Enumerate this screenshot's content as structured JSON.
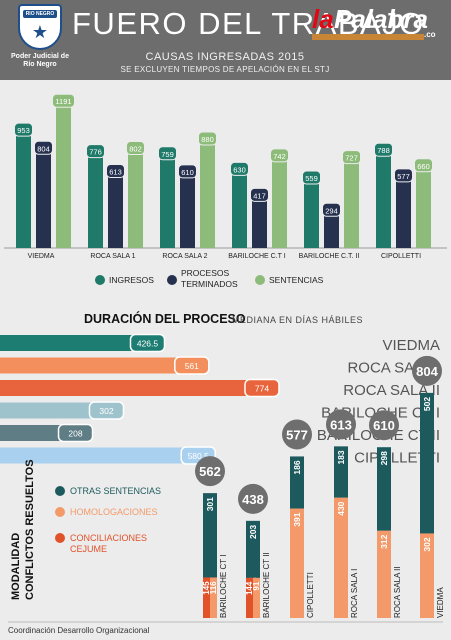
{
  "header": {
    "title": "FUERO DEL TRABAJO",
    "subtitle": "CAUSAS INGRESADAS 2015",
    "note": "SE EXCLUYEN TIEMPOS DE APELACIÓN EN EL STJ",
    "org_label": "Poder Judicial de Río Negro",
    "seal_text": "RIO NEGRO",
    "logo_text_a": "la",
    "logo_text_b": "Palabra",
    "logo_suffix": ".co"
  },
  "colors": {
    "ingresos": "#1f7a6a",
    "terminados": "#26304f",
    "sentencias": "#8dbb7a",
    "duration_dark": "#1e7d72",
    "duration_orange": "#f28f5c",
    "duration_red": "#e8643c",
    "duration_lightblue": "#9fc3cc",
    "duration_slate": "#5e7d85",
    "duration_skyblue": "#a9d0ee",
    "otras": "#1d5a5e",
    "homologaciones": "#f49a6a",
    "conciliaciones": "#e1522b"
  },
  "chart_data": [
    {
      "type": "bar",
      "categories": [
        "VIEDMA",
        "ROCA SALA 1",
        "ROCA SALA 2",
        "BARILOCHE C.T I",
        "BARILOCHE C.T. II",
        "CIPOLLETTI"
      ],
      "series": [
        {
          "name": "INGRESOS",
          "values": [
            953,
            776,
            759,
            630,
            559,
            788
          ]
        },
        {
          "name": "PROCESOS TERMINADOS",
          "values": [
            804,
            613,
            610,
            417,
            294,
            577
          ]
        },
        {
          "name": "SENTENCIAS",
          "values": [
            1191,
            802,
            880,
            742,
            727,
            660
          ]
        }
      ],
      "legend": [
        "INGRESOS",
        "PROCESOS TERMINADOS",
        "SENTENCIAS"
      ],
      "ylim": [
        0,
        1300
      ],
      "legend_position": "bottom"
    },
    {
      "type": "bar",
      "orientation": "horizontal",
      "title": "DURACIÓN DEL PROCESO",
      "subtitle": "MEDIANA EN DÍAS HÁBILES",
      "categories": [
        "VIEDMA",
        "ROCA SALA I",
        "ROCA SALA II",
        "BARILOCHE CT I",
        "BARILOCHE CT II",
        "CIPOLLETTI"
      ],
      "values": [
        426.5,
        561,
        774,
        302,
        208,
        580.5
      ],
      "labels": [
        "426.5",
        "561",
        "774",
        "302",
        "208",
        "580.5"
      ],
      "xlim": [
        0,
        850
      ]
    },
    {
      "type": "bar",
      "stacked": true,
      "title": "MODALIDAD CONFLICTOS RESUELTOS",
      "categories": [
        "BARILOCHE CT I",
        "BARILOCHE CT II",
        "CIPOLLETTI",
        "ROCA SALA I",
        "ROCA SALA II",
        "VIEDMA"
      ],
      "totals": [
        562,
        438,
        577,
        613,
        610,
        804
      ],
      "series": [
        {
          "name": "CONCILIACIONES CEJUME",
          "values": [
            145,
            144,
            0,
            0,
            0,
            0
          ]
        },
        {
          "name": "HOMOLOGACIONES",
          "values": [
            116,
            91,
            391,
            430,
            312,
            302
          ]
        },
        {
          "name": "OTRAS SENTENCIAS",
          "values": [
            301,
            203,
            186,
            183,
            298,
            502
          ]
        }
      ],
      "legend": [
        "OTRAS SENTENCIAS",
        "HOMOLOGACIONES",
        "CONCILIACIONES CEJUME"
      ]
    }
  ],
  "footer": "Coordinación Desarrollo Organizacional"
}
